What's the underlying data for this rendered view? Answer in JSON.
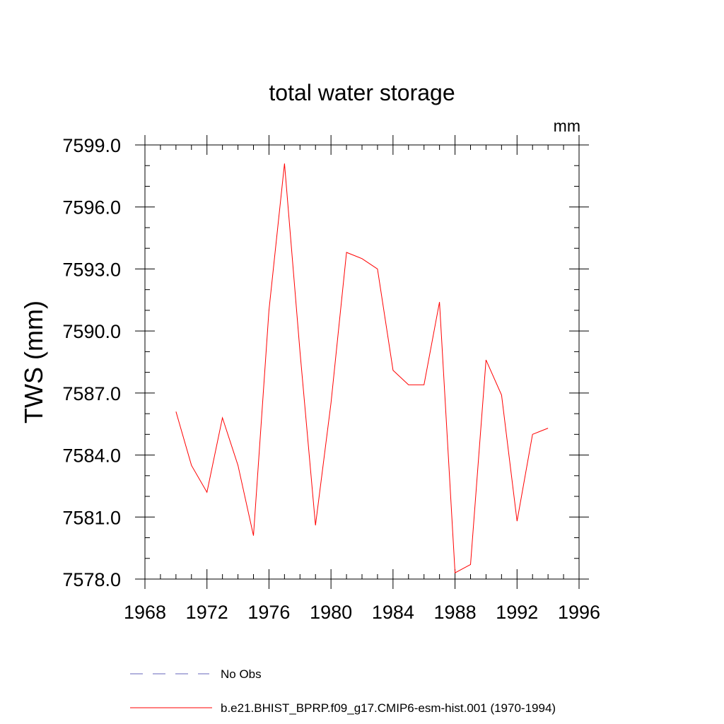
{
  "chart_data": {
    "type": "line",
    "title": "total water storage",
    "units_label": "mm",
    "xlabel": "",
    "ylabel": "TWS  (mm)",
    "xlim": [
      1968,
      1996
    ],
    "ylim": [
      7578.0,
      7599.0
    ],
    "x_ticks": [
      1968,
      1972,
      1976,
      1980,
      1984,
      1988,
      1992,
      1996
    ],
    "x_tick_labels": [
      "1968",
      "1972",
      "1976",
      "1980",
      "1984",
      "1988",
      "1992",
      "1996"
    ],
    "y_ticks": [
      7578,
      7581,
      7584,
      7587,
      7590,
      7593,
      7596,
      7599
    ],
    "y_tick_labels": [
      "7578.0",
      "7581.0",
      "7584.0",
      "7587.0",
      "7590.0",
      "7593.0",
      "7596.0",
      "7599.0"
    ],
    "x_minor_step": 1,
    "y_minor_step": 1,
    "grid": false,
    "x": [
      1970,
      1971,
      1972,
      1973,
      1974,
      1975,
      1976,
      1977,
      1978,
      1979,
      1980,
      1981,
      1982,
      1983,
      1984,
      1985,
      1986,
      1987,
      1988,
      1989,
      1990,
      1991,
      1992,
      1993,
      1994
    ],
    "series": [
      {
        "name": "b.e21.BHIST_BPRP.f09_g17.CMIP6-esm-hist.001 (1970-1994)",
        "color": "#ff0000",
        "style": "solid",
        "values": [
          7586.1,
          7583.5,
          7582.2,
          7585.8,
          7583.5,
          7580.1,
          7591.0,
          7598.1,
          7589.0,
          7580.6,
          7586.5,
          7593.8,
          7593.5,
          7593.0,
          7588.1,
          7587.4,
          7587.4,
          7591.4,
          7578.3,
          7578.7,
          7588.6,
          7586.9,
          7580.8,
          7585.0,
          7585.3
        ]
      }
    ],
    "legend": {
      "placement": "bottom",
      "entries": [
        {
          "label": "No Obs",
          "color": "#6666bb",
          "style": "dashed"
        },
        {
          "label": "b.e21.BHIST_BPRP.f09_g17.CMIP6-esm-hist.001 (1970-1994)",
          "color": "#ff0000",
          "style": "solid"
        }
      ]
    }
  }
}
